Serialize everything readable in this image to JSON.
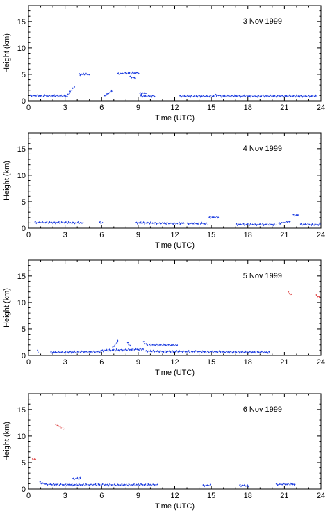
{
  "colors": {
    "cloud": "#1f3fe0",
    "cirrus": "#e05050",
    "axis": "#000000"
  },
  "chart_data": [
    {
      "type": "scatter",
      "title": "3 Nov 1999",
      "xlabel": "Time (UTC)",
      "ylabel": "Height (km)",
      "xlim": [
        0,
        24
      ],
      "ylim": [
        0,
        18
      ],
      "xticks": [
        "0",
        "3",
        "6",
        "9",
        "12",
        "15",
        "18",
        "21",
        "24"
      ],
      "yticks": [
        "0",
        "5",
        "10",
        "15"
      ],
      "series": [
        {
          "color": "#1f3fe0",
          "segments": [
            [
              0.1,
              1.0,
              3.2,
              0.9
            ],
            [
              3.2,
              1.1,
              3.8,
              2.8
            ],
            [
              4.1,
              5.0,
              5.0,
              5.0
            ],
            [
              6.2,
              0.9,
              6.9,
              1.9
            ],
            [
              7.3,
              5.1,
              9.1,
              5.3
            ],
            [
              8.3,
              4.6,
              8.8,
              4.3
            ],
            [
              9.1,
              1.4,
              9.7,
              1.5
            ],
            [
              9.2,
              0.9,
              10.4,
              0.9
            ],
            [
              12.4,
              0.9,
              15.3,
              0.9
            ],
            [
              15.3,
              1.1,
              15.7,
              1.0
            ],
            [
              15.7,
              0.9,
              23.7,
              0.9
            ]
          ]
        }
      ]
    },
    {
      "type": "scatter",
      "title": "4 Nov 1999",
      "xlabel": "Time (UTC)",
      "ylabel": "Height (km)",
      "xlim": [
        0,
        24
      ],
      "ylim": [
        0,
        18
      ],
      "xticks": [
        "0",
        "3",
        "6",
        "9",
        "12",
        "15",
        "18",
        "21",
        "24"
      ],
      "yticks": [
        "0",
        "5",
        "10",
        "15"
      ],
      "series": [
        {
          "color": "#1f3fe0",
          "segments": [
            [
              0.5,
              1.1,
              4.5,
              1.0
            ],
            [
              5.8,
              1.1,
              6.1,
              1.0
            ],
            [
              8.8,
              1.0,
              12.8,
              0.9
            ],
            [
              13.0,
              0.9,
              14.7,
              0.9
            ],
            [
              14.8,
              2.0,
              15.6,
              2.1
            ],
            [
              17.0,
              0.7,
              20.3,
              0.7
            ],
            [
              20.5,
              0.9,
              21.5,
              1.3
            ],
            [
              21.7,
              2.5,
              22.2,
              2.4
            ],
            [
              22.3,
              0.7,
              24.0,
              0.7
            ]
          ]
        }
      ]
    },
    {
      "type": "scatter",
      "title": "5 Nov 1999",
      "xlabel": "Time (UTC)",
      "ylabel": "Height (km)",
      "xlim": [
        0,
        24
      ],
      "ylim": [
        0,
        18
      ],
      "xticks": [
        "0",
        "3",
        "6",
        "9",
        "12",
        "15",
        "18",
        "21",
        "24"
      ],
      "yticks": [
        "0",
        "5",
        "10",
        "15"
      ],
      "series": [
        {
          "color": "#1f3fe0",
          "segments": [
            [
              0.7,
              1.0,
              0.8,
              0.7
            ],
            [
              1.8,
              0.6,
              6.0,
              0.7
            ],
            [
              6.0,
              0.9,
              9.5,
              1.2
            ],
            [
              6.9,
              1.5,
              7.4,
              2.9
            ],
            [
              8.1,
              2.5,
              8.4,
              1.6
            ],
            [
              9.4,
              2.6,
              9.8,
              1.9
            ],
            [
              9.9,
              2.0,
              12.3,
              1.9
            ],
            [
              9.6,
              0.8,
              15.0,
              0.7
            ],
            [
              15.0,
              0.7,
              19.8,
              0.6
            ]
          ]
        },
        {
          "color": "#e05050",
          "segments": [
            [
              21.3,
              12.0,
              21.6,
              11.4
            ],
            [
              23.6,
              11.4,
              23.9,
              11.0
            ]
          ]
        }
      ]
    },
    {
      "type": "scatter",
      "title": "6 Nov 1999",
      "xlabel": "Time (UTC)",
      "ylabel": "Height (km)",
      "xlim": [
        0,
        24
      ],
      "ylim": [
        0,
        18
      ],
      "xticks": [
        "0",
        "3",
        "6",
        "9",
        "12",
        "15",
        "18",
        "21",
        "24"
      ],
      "yticks": [
        "0",
        "5",
        "10",
        "15"
      ],
      "series": [
        {
          "color": "#1f3fe0",
          "segments": [
            [
              0.9,
              1.3,
              1.4,
              0.9
            ],
            [
              1.4,
              0.9,
              3.5,
              0.8
            ],
            [
              3.6,
              1.9,
              4.3,
              2.0
            ],
            [
              3.5,
              0.8,
              10.6,
              0.8
            ],
            [
              14.3,
              0.7,
              15.0,
              0.7
            ],
            [
              17.3,
              0.7,
              18.1,
              0.6
            ],
            [
              20.3,
              0.9,
              21.9,
              0.9
            ]
          ]
        },
        {
          "color": "#e05050",
          "segments": [
            [
              2.2,
              12.2,
              2.9,
              11.4
            ],
            [
              0.3,
              5.6,
              0.6,
              5.6
            ]
          ]
        }
      ]
    }
  ]
}
